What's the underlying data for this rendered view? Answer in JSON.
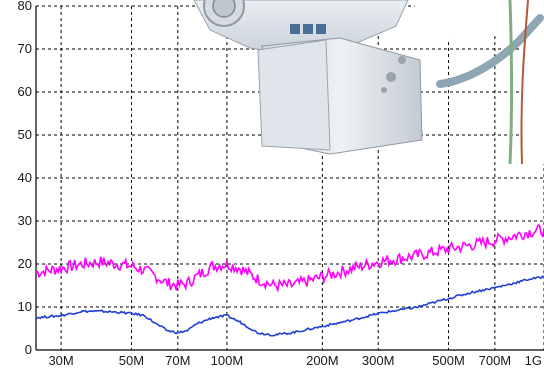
{
  "chart_data": {
    "type": "line",
    "title": "",
    "xlabel": "",
    "ylabel": "",
    "x_scale": "log",
    "xlim": [
      25000000,
      1000000000
    ],
    "ylim": [
      0,
      80
    ],
    "grid": true,
    "x_ticks": [
      {
        "label": "30M",
        "value": 30000000
      },
      {
        "label": "50M",
        "value": 50000000
      },
      {
        "label": "70M",
        "value": 70000000
      },
      {
        "label": "100M",
        "value": 100000000
      },
      {
        "label": "200M",
        "value": 200000000
      },
      {
        "label": "300M",
        "value": 300000000
      },
      {
        "label": "500M",
        "value": 500000000
      },
      {
        "label": "700M",
        "value": 700000000
      },
      {
        "label": "1G",
        "value": 1000000000
      }
    ],
    "y_ticks": [
      {
        "label": "0",
        "value": 0
      },
      {
        "label": "10",
        "value": 10
      },
      {
        "label": "20",
        "value": 20
      },
      {
        "label": "30",
        "value": 30
      },
      {
        "label": "40",
        "value": 40
      },
      {
        "label": "50",
        "value": 50
      },
      {
        "label": "60",
        "value": 60
      },
      {
        "label": "70",
        "value": 70
      },
      {
        "label": "80",
        "value": 80
      }
    ],
    "series": [
      {
        "color": "#ff00ff",
        "x": [
          25000000,
          30000000,
          35000000,
          40000000,
          45000000,
          50000000,
          55000000,
          60000000,
          65000000,
          70000000,
          75000000,
          80000000,
          90000000,
          100000000,
          110000000,
          125000000,
          140000000,
          160000000,
          200000000,
          250000000,
          300000000,
          400000000,
          500000000,
          600000000,
          700000000,
          800000000,
          900000000,
          1000000000
        ],
        "y": [
          18,
          19,
          20,
          20.5,
          20,
          19.5,
          18.5,
          17,
          15.5,
          15,
          15.5,
          17,
          19.5,
          20,
          19,
          16.5,
          15,
          15,
          17,
          19,
          20.5,
          22,
          23.5,
          24.5,
          25.5,
          26.5,
          27.5,
          28
        ]
      },
      {
        "color": "#1f3fd6",
        "x": [
          25000000,
          30000000,
          35000000,
          40000000,
          45000000,
          50000000,
          55000000,
          60000000,
          65000000,
          70000000,
          75000000,
          80000000,
          90000000,
          100000000,
          110000000,
          125000000,
          140000000,
          160000000,
          200000000,
          250000000,
          300000000,
          400000000,
          500000000,
          600000000,
          700000000,
          800000000,
          900000000,
          1000000000
        ],
        "y": [
          7.5,
          8,
          9,
          9,
          8.8,
          8.5,
          8,
          6,
          4.5,
          4,
          4.5,
          6,
          7.5,
          8,
          6.5,
          4,
          3.5,
          4,
          5.5,
          7,
          8.5,
          10,
          12,
          13.5,
          14.5,
          15.5,
          16.5,
          17
        ]
      }
    ]
  }
}
